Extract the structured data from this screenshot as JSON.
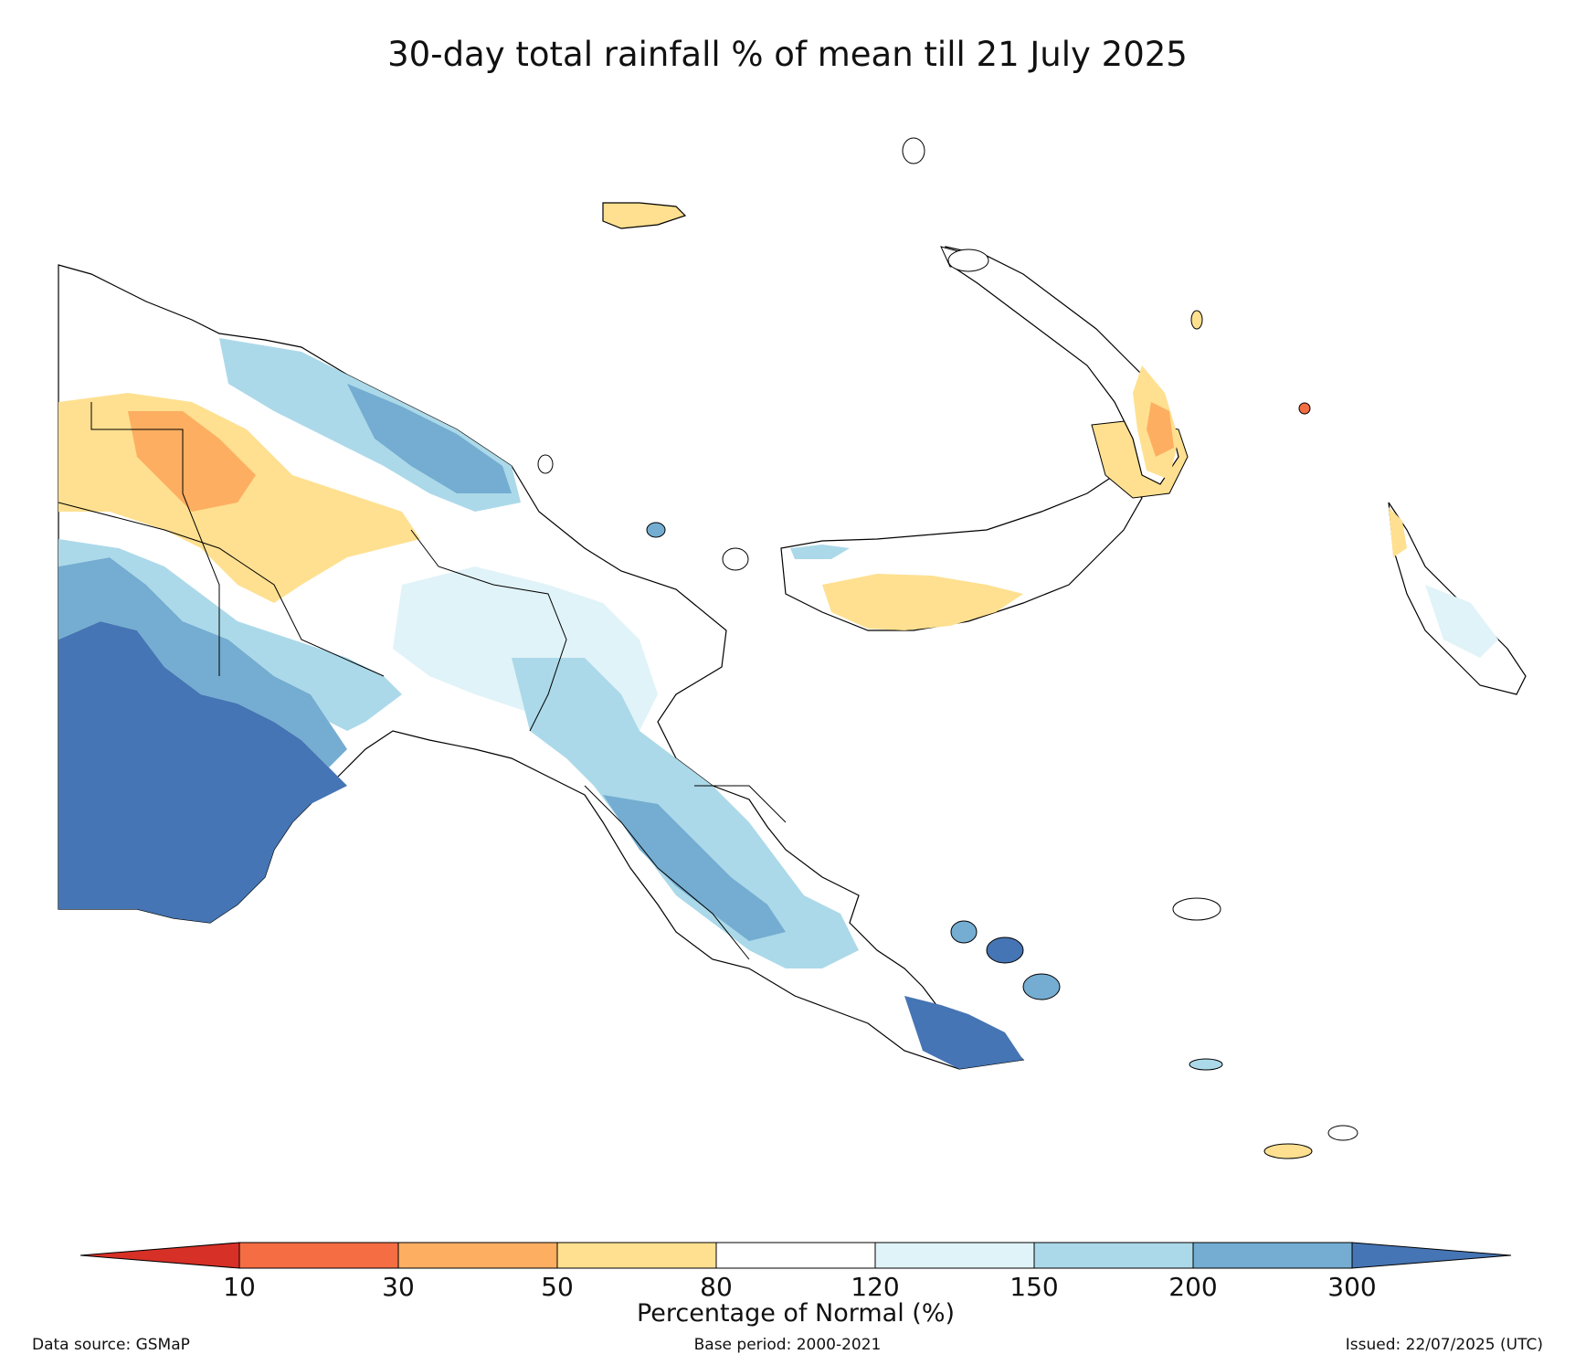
{
  "title": "30-day total rainfall % of mean till 21 July 2025",
  "legend": {
    "label": "Percentage of Normal (%)",
    "ticks": [
      "10",
      "30",
      "50",
      "80",
      "120",
      "150",
      "200",
      "300"
    ],
    "colors": {
      "below_10": "#d73027",
      "10_30": "#f46d43",
      "30_50": "#fdae61",
      "50_80": "#fee090",
      "80_120": "#ffffff",
      "120_150": "#e0f3f8",
      "150_200": "#abd9e9",
      "200_300": "#74add1",
      "above_300": "#4575b4"
    }
  },
  "footer": {
    "source": "Data source: GSMaP",
    "base_period": "Base period: 2000-2021",
    "issued": "Issued: 22/07/2025 (UTC)"
  }
}
